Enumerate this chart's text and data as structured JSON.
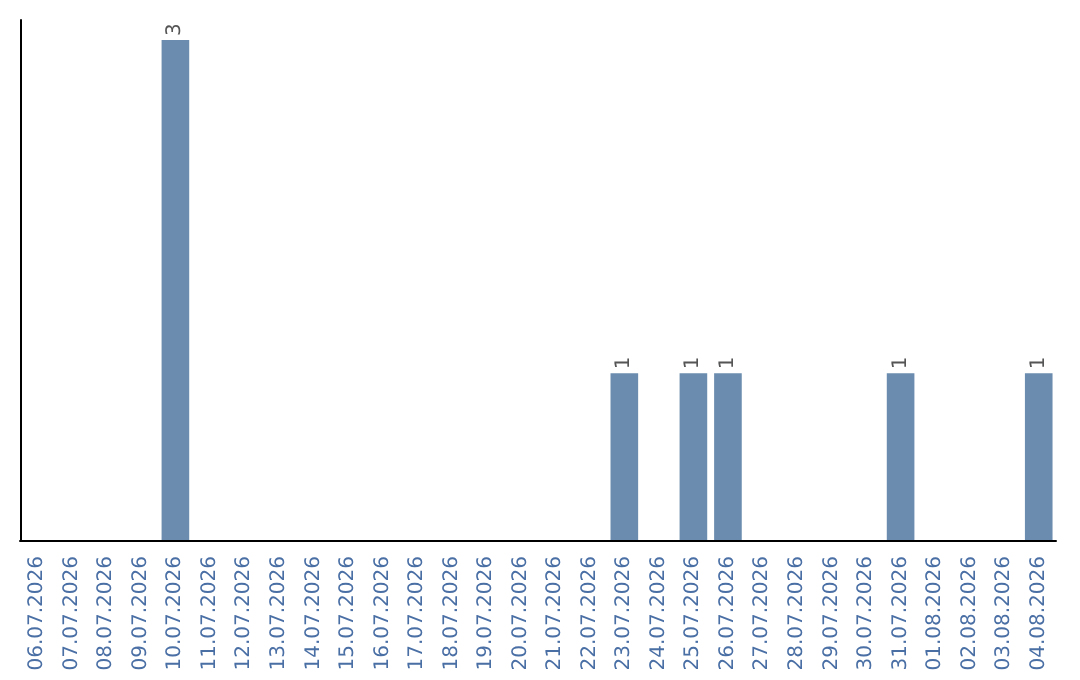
{
  "chart_data": {
    "type": "bar",
    "categories": [
      "06.07.2026",
      "07.07.2026",
      "08.07.2026",
      "09.07.2026",
      "10.07.2026",
      "11.07.2026",
      "12.07.2026",
      "13.07.2026",
      "14.07.2026",
      "15.07.2026",
      "16.07.2026",
      "17.07.2026",
      "18.07.2026",
      "19.07.2026",
      "20.07.2026",
      "21.07.2026",
      "22.07.2026",
      "23.07.2026",
      "24.07.2026",
      "25.07.2026",
      "26.07.2026",
      "27.07.2026",
      "28.07.2026",
      "29.07.2026",
      "30.07.2026",
      "31.07.2026",
      "01.08.2026",
      "02.08.2026",
      "03.08.2026",
      "04.08.2026"
    ],
    "values": [
      0,
      0,
      0,
      0,
      3,
      0,
      0,
      0,
      0,
      0,
      0,
      0,
      0,
      0,
      0,
      0,
      0,
      1,
      0,
      1,
      1,
      0,
      0,
      0,
      0,
      1,
      0,
      0,
      0,
      1
    ],
    "value_labels": [
      null,
      null,
      null,
      null,
      "3",
      null,
      null,
      null,
      null,
      null,
      null,
      null,
      null,
      null,
      null,
      null,
      null,
      "1",
      null,
      "1",
      "1",
      null,
      null,
      null,
      null,
      "1",
      null,
      null,
      null,
      "1"
    ],
    "color": "#6b8cae",
    "tick_labels": "x"
  }
}
